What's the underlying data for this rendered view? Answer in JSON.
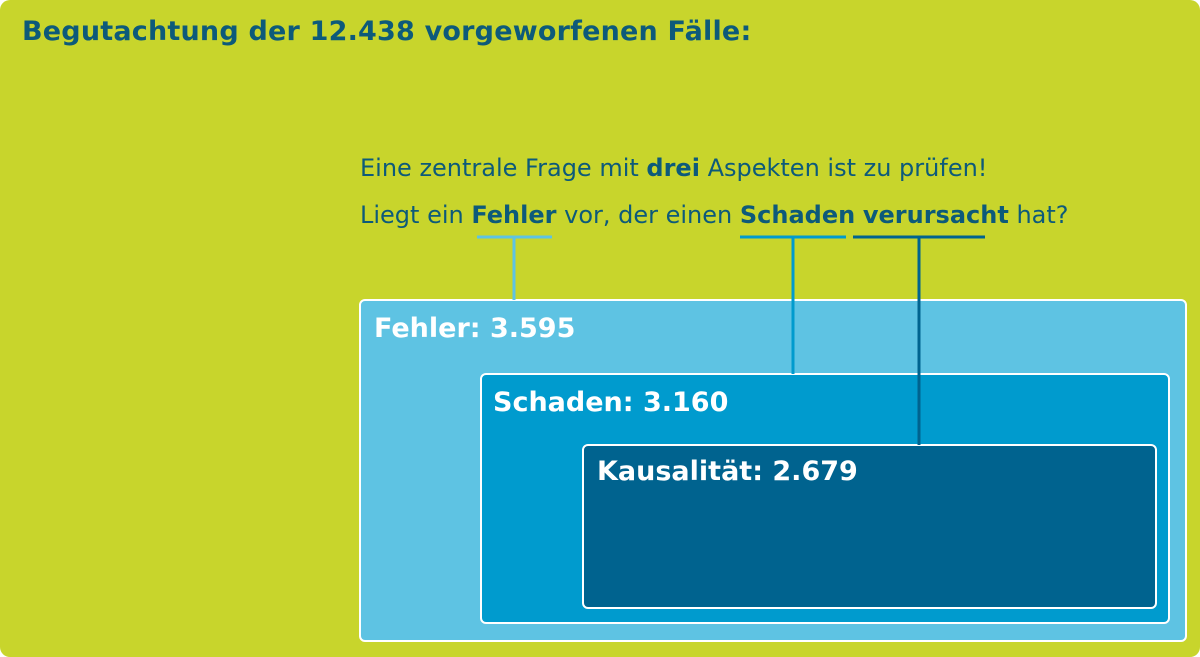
{
  "title": "Begutachtung der 12.438 vorgeworfenen Fälle:",
  "question": {
    "line1_pre": "Eine zentrale Frage mit ",
    "line1_bold": "drei",
    "line1_post": " Aspekten ist zu prüfen!",
    "line2_pre": "Liegt ein ",
    "line2_term1": "Fehler",
    "line2_mid1": " vor, der einen ",
    "line2_term2": "Schaden",
    "line2_term3": "verursacht",
    "line2_post": " hat?"
  },
  "boxes": {
    "fehler": "Fehler: 3.595",
    "schaden": "Schaden: 3.160",
    "kausalitaet": "Kausalität: 2.679"
  },
  "colors": {
    "background": "#c8d52c",
    "text_dark_blue": "#0d5a7a",
    "fehler_box": "#5ec3e3",
    "schaden_box": "#009bce",
    "kausalitaet_box": "#00638f",
    "connector_fehler": "#5ec3e3",
    "connector_schaden": "#009bce",
    "connector_kausalitaet": "#00638f"
  }
}
